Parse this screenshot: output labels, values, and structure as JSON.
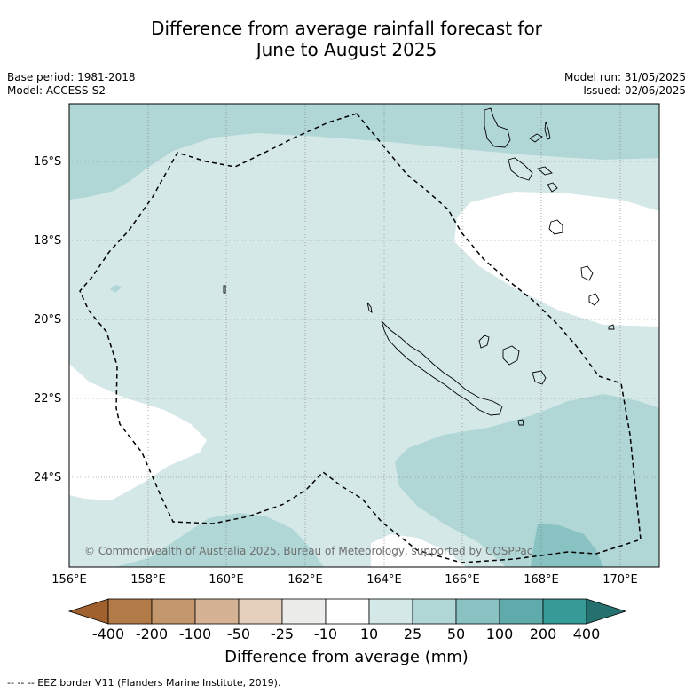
{
  "title_line1": "Difference from average rainfall forecast for",
  "title_line2": "June to August 2025",
  "base_period": "Base period: 1981-2018",
  "model": "Model: ACCESS-S2",
  "model_run": "Model run: 31/05/2025",
  "issued": "Issued: 02/06/2025",
  "copyright": "© Commonwealth of Australia 2025, Bureau of Meteorology, supported by COSPPac",
  "lat_labels": [
    "16°S",
    "18°S",
    "20°S",
    "22°S",
    "24°S"
  ],
  "lon_labels": [
    "156°E",
    "158°E",
    "160°E",
    "162°E",
    "164°E",
    "166°E",
    "168°E",
    "170°E"
  ],
  "colorbar": {
    "tick_labels": [
      "-400",
      "-200",
      "-100",
      "-50",
      "-25",
      "-10",
      "10",
      "25",
      "50",
      "100",
      "200",
      "400"
    ],
    "colors": [
      "#a0612e",
      "#b27a46",
      "#c4966c",
      "#d4b293",
      "#e5d0bd",
      "#ececea",
      "#ffffff",
      "#d4e8e7",
      "#b0d6d6",
      "#89c2c2",
      "#5fabab",
      "#369a97",
      "#25716f"
    ],
    "xlabel": "Difference from average (mm)"
  },
  "footnote": "-- -- -- EEZ border V11 (Flanders Marine Institute, 2019)."
}
